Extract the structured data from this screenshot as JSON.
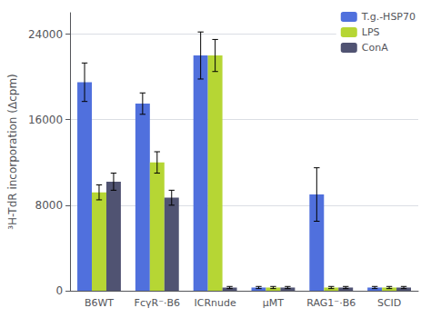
{
  "chart_data": {
    "type": "bar",
    "ylabel": "³H-TdR incorporation (Δcpm)",
    "categories": [
      "B6WT",
      "FcγR⁻·B6",
      "ICRnude",
      "μMT",
      "RAG1⁻·B6",
      "SCID"
    ],
    "series": [
      {
        "name": "T.g.-HSP70",
        "values": [
          19500,
          17500,
          22000,
          300,
          9000,
          300
        ],
        "errors": [
          1800,
          1000,
          2200,
          100,
          2500,
          100
        ]
      },
      {
        "name": "LPS",
        "values": [
          9200,
          12000,
          22000,
          300,
          300,
          300
        ],
        "errors": [
          700,
          1000,
          1500,
          100,
          100,
          100
        ]
      },
      {
        "name": "ConA",
        "values": [
          10200,
          8700,
          300,
          300,
          300,
          300
        ],
        "errors": [
          800,
          700,
          100,
          100,
          100,
          100
        ]
      }
    ],
    "ylim": [
      0,
      26000
    ],
    "yticks": [
      0,
      8000,
      16000,
      24000
    ],
    "grid": true,
    "legend": "upper right"
  }
}
